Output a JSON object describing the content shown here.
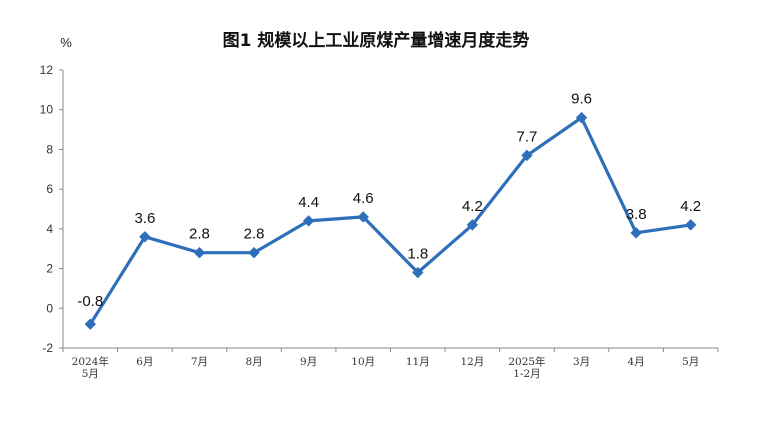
{
  "chart_data": {
    "type": "line",
    "title": "图1  规模以上工业原煤产量增速月度走势",
    "unit_label": "%",
    "categories": [
      [
        "2024年",
        "5月"
      ],
      [
        "6月"
      ],
      [
        "7月"
      ],
      [
        "8月"
      ],
      [
        "9月"
      ],
      [
        "10月"
      ],
      [
        "11月"
      ],
      [
        "12月"
      ],
      [
        "2025年",
        "1-2月"
      ],
      [
        "3月"
      ],
      [
        "4月"
      ],
      [
        "5月"
      ]
    ],
    "series": [
      {
        "values": [
          -0.8,
          3.6,
          2.8,
          2.8,
          4.4,
          4.6,
          1.8,
          4.2,
          7.7,
          9.6,
          3.8,
          4.2
        ]
      }
    ],
    "data_labels": [
      "-0.8",
      "3.6",
      "2.8",
      "2.8",
      "4.4",
      "4.6",
      "1.8",
      "4.2",
      "7.7",
      "9.6",
      "3.8",
      "4.2"
    ],
    "ylim": [
      -2,
      12
    ],
    "yticks": [
      "-2",
      "0",
      "2",
      "4",
      "6",
      "8",
      "10",
      "12"
    ],
    "grid": false,
    "legend": "none",
    "colors": {
      "series": "#2e6fba",
      "axis": "#8a8a8a"
    }
  }
}
